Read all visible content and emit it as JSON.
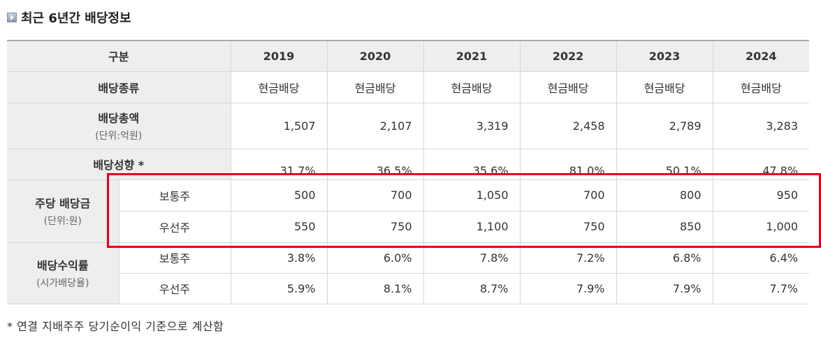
{
  "section": {
    "title": "최근 6년간 배당정보",
    "icon": "play-square-icon"
  },
  "table": {
    "header_label": "구분",
    "years": [
      "2019",
      "2020",
      "2021",
      "2022",
      "2023",
      "2024"
    ],
    "dividend_type": {
      "label": "배당종류",
      "values": [
        "현금배당",
        "현금배당",
        "현금배당",
        "현금배당",
        "현금배당",
        "현금배당"
      ]
    },
    "total_dividend": {
      "label": "배당총액",
      "unit": "(단위:억원)",
      "values": [
        "1,507",
        "2,107",
        "3,319",
        "2,458",
        "2,789",
        "3,283"
      ]
    },
    "payout_ratio": {
      "label": "배당성향",
      "marker": "*",
      "values": [
        "31.7%",
        "36.5%",
        "35.6%",
        "81.0%",
        "50.1%",
        "47.8%"
      ]
    },
    "dps": {
      "label": "주당 배당금",
      "unit": "(단위:원)",
      "common_label": "보통주",
      "common_values": [
        "500",
        "700",
        "1,050",
        "700",
        "800",
        "950"
      ],
      "preferred_label": "우선주",
      "preferred_values": [
        "550",
        "750",
        "1,100",
        "750",
        "850",
        "1,000"
      ]
    },
    "yield": {
      "label": "배당수익률",
      "unit": "(시가배당율)",
      "common_label": "보통주",
      "common_values": [
        "3.8%",
        "6.0%",
        "7.8%",
        "7.2%",
        "6.8%",
        "6.4%"
      ],
      "preferred_label": "우선주",
      "preferred_values": [
        "5.9%",
        "8.1%",
        "8.7%",
        "7.9%",
        "7.9%",
        "7.7%"
      ]
    }
  },
  "footnote": "* 연결 지배주주 당기순이익 기준으로 계산함",
  "colors": {
    "highlight": "#e0001b",
    "header_bg": "#eeeeee"
  }
}
